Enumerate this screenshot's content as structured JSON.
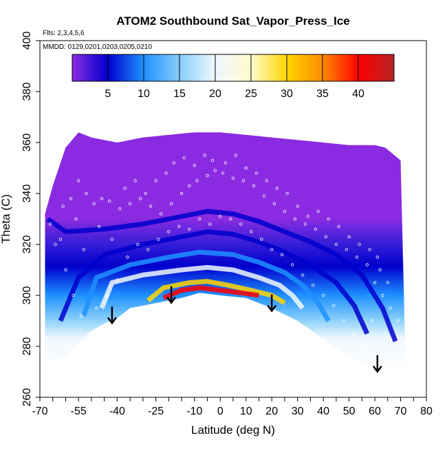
{
  "chart_data": {
    "type": "heatmap",
    "title": "ATOM2 Southbound Sat_Vapor_Press_Ice",
    "subtitle_flights": "Flts: 2,3,4,5,6",
    "subtitle_dates": "MMDD: 0129,0201,0203,0205,0210",
    "xlabel": "Latitude (deg N)",
    "ylabel": "Theta (C)",
    "xlim": [
      -70,
      80
    ],
    "ylim": [
      260,
      400
    ],
    "x_ticks_major": [
      -70,
      -55,
      -40,
      -25,
      -10,
      0,
      10,
      20,
      30,
      40,
      50,
      60,
      70,
      80
    ],
    "x_ticks_labels": [
      "-70",
      "-55",
      "-40",
      "-25",
      "-10",
      "0",
      "10",
      "20",
      "30",
      "40",
      "50",
      "60",
      "70",
      "80"
    ],
    "y_ticks": [
      260,
      280,
      300,
      320,
      340,
      360,
      380,
      400
    ],
    "y_ticks_labels": [
      "260",
      "280",
      "300",
      "320",
      "340",
      "360",
      "380",
      "400"
    ],
    "colorbar": {
      "min": 0,
      "max": 45,
      "ticks": [
        5,
        10,
        15,
        20,
        25,
        30,
        35,
        40
      ],
      "tick_labels": [
        "5",
        "10",
        "15",
        "20",
        "25",
        "30",
        "35",
        "40"
      ],
      "colors": [
        "#8a2be2",
        "#0000cd",
        "#1e90ff",
        "#87cefa",
        "#f0f8ff",
        "#fffacd",
        "#ffd700",
        "#ff8c00",
        "#ff0000",
        "#b22222"
      ]
    },
    "arrows_latitude": [
      -42,
      -19,
      20,
      61
    ],
    "field_upper_theta_by_lat": [
      [
        -68,
        332
      ],
      [
        -65,
        343
      ],
      [
        -60,
        358
      ],
      [
        -55,
        364
      ],
      [
        -50,
        362
      ],
      [
        -40,
        360
      ],
      [
        -30,
        362
      ],
      [
        -20,
        363
      ],
      [
        -10,
        364
      ],
      [
        0,
        364
      ],
      [
        10,
        363
      ],
      [
        20,
        362
      ],
      [
        30,
        361
      ],
      [
        40,
        360
      ],
      [
        50,
        359
      ],
      [
        60,
        359
      ],
      [
        64,
        358
      ],
      [
        70,
        353
      ]
    ],
    "field_lower_theta_by_lat": [
      [
        -68,
        276
      ],
      [
        -65,
        274
      ],
      [
        -60,
        276
      ],
      [
        -55,
        281
      ],
      [
        -50,
        286
      ],
      [
        -45,
        289
      ],
      [
        -40,
        291
      ],
      [
        -35,
        295
      ],
      [
        -25,
        297
      ],
      [
        -15,
        299
      ],
      [
        -8,
        301
      ],
      [
        0,
        300
      ],
      [
        10,
        299
      ],
      [
        20,
        295
      ],
      [
        30,
        290
      ],
      [
        40,
        283
      ],
      [
        50,
        276
      ],
      [
        58,
        272
      ],
      [
        65,
        270
      ],
      [
        72,
        270
      ]
    ],
    "contours": [
      {
        "value": 3,
        "points": [
          [
            -67,
            330
          ],
          [
            -60,
            325
          ],
          [
            -45,
            326
          ],
          [
            -30,
            328
          ],
          [
            -15,
            331
          ],
          [
            -5,
            333
          ],
          [
            5,
            332
          ],
          [
            15,
            329
          ],
          [
            25,
            325
          ],
          [
            35,
            321
          ],
          [
            45,
            316
          ],
          [
            55,
            308
          ],
          [
            63,
            295
          ],
          [
            68,
            282
          ]
        ]
      },
      {
        "value": 6,
        "points": [
          [
            -62,
            290
          ],
          [
            -55,
            307
          ],
          [
            -45,
            316
          ],
          [
            -30,
            320
          ],
          [
            -15,
            323
          ],
          [
            -5,
            325
          ],
          [
            5,
            324
          ],
          [
            15,
            321
          ],
          [
            25,
            317
          ],
          [
            35,
            312
          ],
          [
            45,
            305
          ],
          [
            52,
            296
          ],
          [
            57,
            285
          ]
        ]
      },
      {
        "value": 12,
        "points": [
          [
            -53,
            292
          ],
          [
            -48,
            307
          ],
          [
            -35,
            312
          ],
          [
            -20,
            315
          ],
          [
            -8,
            317
          ],
          [
            5,
            316
          ],
          [
            15,
            313
          ],
          [
            25,
            309
          ],
          [
            32,
            304
          ],
          [
            38,
            297
          ],
          [
            42,
            290
          ]
        ]
      },
      {
        "value": 20,
        "points": [
          [
            -46,
            295
          ],
          [
            -42,
            305
          ],
          [
            -30,
            308
          ],
          [
            -15,
            310
          ],
          [
            -5,
            311
          ],
          [
            5,
            310
          ],
          [
            15,
            307
          ],
          [
            23,
            304
          ],
          [
            28,
            300
          ],
          [
            32,
            295
          ]
        ]
      },
      {
        "value": 28,
        "points": [
          [
            -28,
            298
          ],
          [
            -22,
            303
          ],
          [
            -12,
            305
          ],
          [
            -5,
            305.5
          ],
          [
            3,
            304
          ],
          [
            12,
            302
          ],
          [
            20,
            300
          ],
          [
            25,
            297
          ]
        ]
      },
      {
        "value": 38,
        "points": [
          [
            -22,
            299
          ],
          [
            -15,
            302
          ],
          [
            -8,
            303
          ],
          [
            0,
            302
          ],
          [
            8,
            301
          ],
          [
            15,
            300
          ]
        ]
      }
    ],
    "sample_points": [
      [
        -69,
        325
      ],
      [
        -66,
        328
      ],
      [
        -62,
        322
      ],
      [
        -58,
        338
      ],
      [
        -55,
        345
      ],
      [
        -52,
        340
      ],
      [
        -49,
        336
      ],
      [
        -46,
        338
      ],
      [
        -43,
        337
      ],
      [
        -39,
        334
      ],
      [
        -35,
        336
      ],
      [
        -31,
        338
      ],
      [
        -27,
        335
      ],
      [
        -23,
        332
      ],
      [
        -19,
        336
      ],
      [
        -15,
        340
      ],
      [
        -12,
        343
      ],
      [
        -9,
        345
      ],
      [
        -5,
        347
      ],
      [
        -2,
        349
      ],
      [
        1,
        348
      ],
      [
        5,
        346
      ],
      [
        9,
        345
      ],
      [
        13,
        343
      ],
      [
        17,
        339
      ],
      [
        21,
        336
      ],
      [
        25,
        333
      ],
      [
        29,
        330
      ],
      [
        33,
        328
      ],
      [
        37,
        326
      ],
      [
        41,
        323
      ],
      [
        45,
        320
      ],
      [
        49,
        318
      ],
      [
        53,
        315
      ],
      [
        57,
        312
      ],
      [
        60,
        305
      ],
      [
        63,
        300
      ],
      [
        66,
        295
      ],
      [
        -60,
        310
      ],
      [
        -57,
        300
      ],
      [
        -54,
        292
      ],
      [
        -51,
        285
      ],
      [
        -48,
        295
      ],
      [
        -44,
        300
      ],
      [
        -40,
        306
      ],
      [
        -36,
        315
      ],
      [
        -32,
        320
      ],
      [
        -28,
        318
      ],
      [
        -24,
        322
      ],
      [
        -20,
        325
      ],
      [
        -16,
        327
      ],
      [
        -12,
        326
      ],
      [
        -8,
        330
      ],
      [
        -4,
        328
      ],
      [
        0,
        331
      ],
      [
        4,
        330
      ],
      [
        8,
        328
      ],
      [
        12,
        325
      ],
      [
        16,
        322
      ],
      [
        20,
        318
      ],
      [
        24,
        316
      ],
      [
        28,
        312
      ],
      [
        32,
        308
      ],
      [
        36,
        304
      ],
      [
        40,
        300
      ],
      [
        44,
        296
      ],
      [
        48,
        290
      ],
      [
        52,
        285
      ],
      [
        56,
        280
      ],
      [
        59,
        290
      ],
      [
        62,
        310
      ],
      [
        64,
        285
      ],
      [
        67,
        276
      ],
      [
        -64,
        320
      ],
      [
        -61,
        335
      ],
      [
        -56,
        330
      ],
      [
        -53,
        318
      ],
      [
        -47,
        327
      ],
      [
        -42,
        322
      ],
      [
        -37,
        342
      ],
      [
        -33,
        345
      ],
      [
        -29,
        340
      ],
      [
        -25,
        345
      ],
      [
        -21,
        348
      ],
      [
        -18,
        352
      ],
      [
        -14,
        354
      ],
      [
        -10,
        351
      ],
      [
        -6,
        355
      ],
      [
        -3,
        353
      ],
      [
        2,
        352
      ],
      [
        6,
        355
      ],
      [
        10,
        350
      ],
      [
        14,
        348
      ],
      [
        18,
        345
      ],
      [
        22,
        342
      ],
      [
        26,
        340
      ],
      [
        30,
        335
      ],
      [
        34,
        331
      ],
      [
        38,
        333
      ],
      [
        42,
        330
      ],
      [
        46,
        327
      ],
      [
        50,
        323
      ],
      [
        54,
        320
      ],
      [
        58,
        318
      ],
      [
        61,
        315
      ],
      [
        65,
        305
      ],
      [
        69,
        290
      ]
    ]
  }
}
